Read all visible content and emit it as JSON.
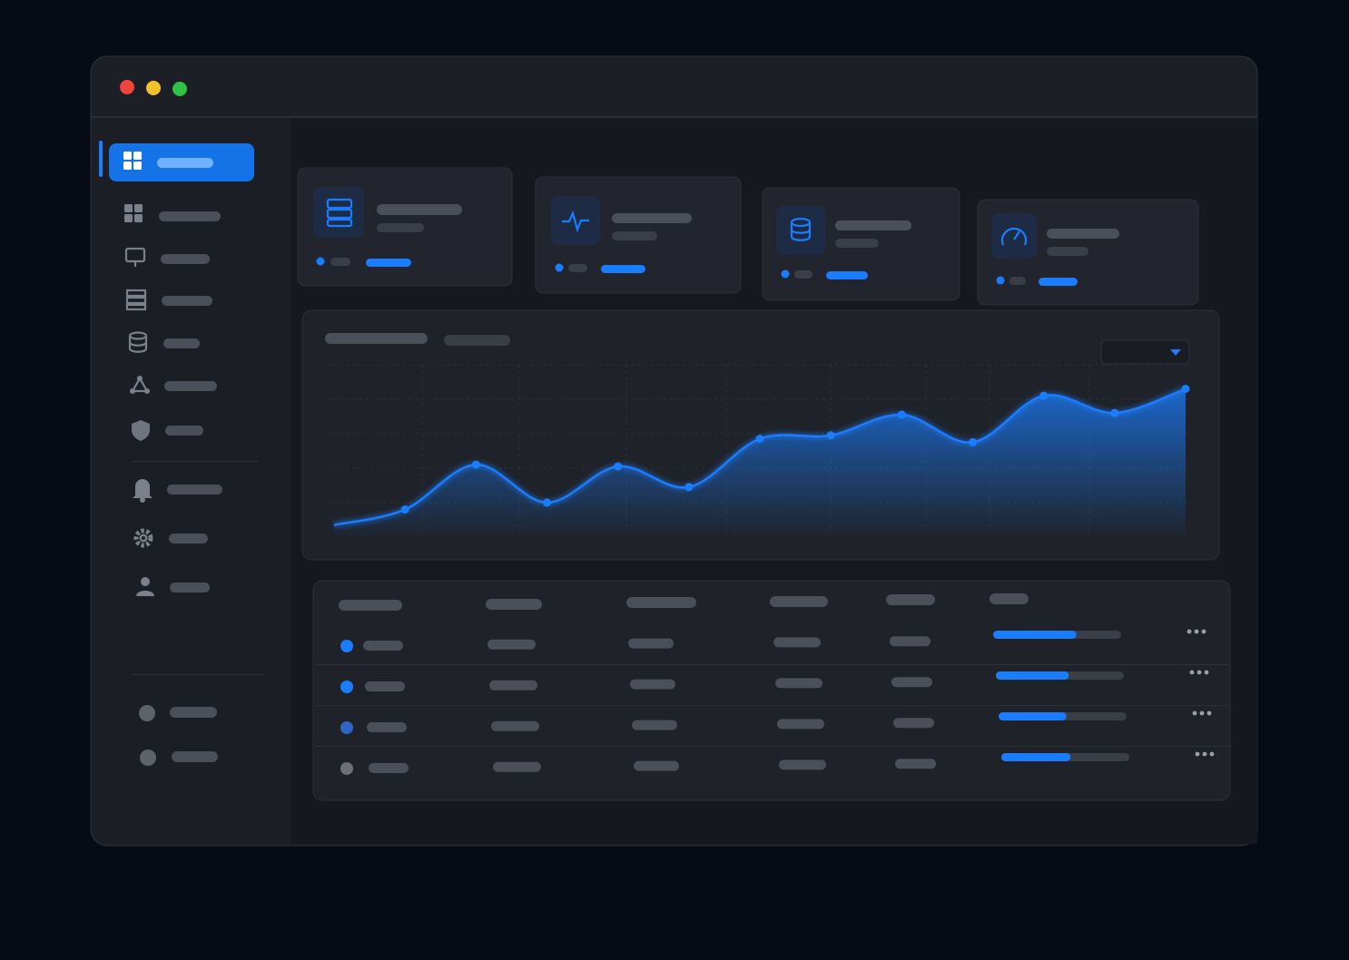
{
  "chart_data": {
    "type": "line",
    "categories": [
      null,
      null,
      null,
      null,
      null,
      null,
      null,
      null,
      null,
      null,
      null,
      null,
      null
    ],
    "values": [
      6,
      15,
      41,
      19,
      40,
      28,
      56,
      58,
      70,
      54,
      81,
      71,
      85
    ],
    "color": "#1a7dff",
    "ylim": [
      0,
      100
    ]
  },
  "table": {
    "progress_lim": [
      0,
      100
    ],
    "rows": [
      {
        "status_color": "#1a7dff",
        "progress": 65
      },
      {
        "status_color": "#1a7dff",
        "progress": 57
      },
      {
        "status_color": "#2f66c4",
        "progress": 53
      },
      {
        "status_color": "#6b7079",
        "progress": 54
      }
    ]
  }
}
